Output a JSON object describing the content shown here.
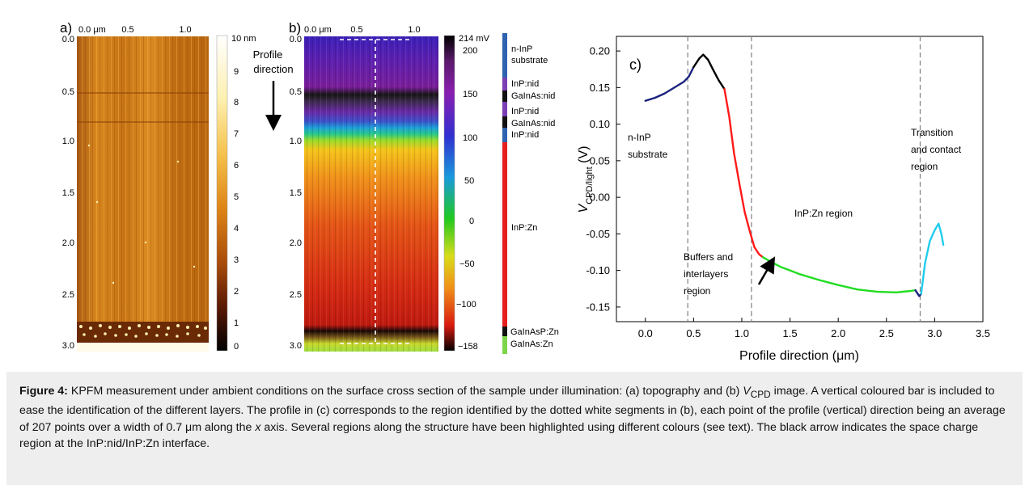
{
  "panel_a": {
    "label": "a)",
    "x_ticks": [
      "0.0 μm",
      "0.5",
      "1.0"
    ],
    "y_ticks": [
      "0.0",
      "0.5",
      "1.0",
      "1.5",
      "2.0",
      "2.5",
      "3.0"
    ],
    "colorbar_ticks": [
      "10 nm",
      "9",
      "8",
      "7",
      "6",
      "5",
      "4",
      "3",
      "2",
      "1",
      "0"
    ],
    "profile_label_line1": "Profile",
    "profile_label_line2": "direction"
  },
  "panel_b": {
    "label": "b)",
    "x_ticks": [
      "0.0 μm",
      "0.5",
      "1.0"
    ],
    "y_ticks": [
      "0.0",
      "0.5",
      "1.0",
      "1.5",
      "2.0",
      "2.5",
      "3.0"
    ],
    "colorbar_ticks": [
      "214 mV",
      "200",
      "150",
      "100",
      "50",
      "0",
      "−50",
      "−100",
      "−158"
    ],
    "layers": [
      {
        "label": "n-InP",
        "color": "#2f62b0"
      },
      {
        "label": "substrate",
        "color": ""
      },
      {
        "label": "InP:nid",
        "color": "#7a3fb5"
      },
      {
        "label": "GaInAs:nid",
        "color": "#111111"
      },
      {
        "label": "InP:nid",
        "color": "#7a3fb5"
      },
      {
        "label": "GaInAs:nid",
        "color": "#111111"
      },
      {
        "label": "InP:nid",
        "color": "#2f62b0"
      },
      {
        "label": "InP:Zn",
        "color": "#e61e1e"
      },
      {
        "label": "GaInAsP:Zn",
        "color": "#111111"
      },
      {
        "label": "GaInAs:Zn",
        "color": "#7cd64a"
      }
    ]
  },
  "panel_c": {
    "label": "c)",
    "annotations": {
      "n_inp_1": "n-InP",
      "n_inp_2": "substrate",
      "buffers_1": "Buffers and",
      "buffers_2": "interlayers",
      "buffers_3": "region",
      "inpzn": "InP:Zn region",
      "transition_1": "Transition",
      "transition_2": "and contact",
      "transition_3": "region"
    }
  },
  "chart_data": {
    "type": "line",
    "xlabel": "Profile direction (μm)",
    "ylabel": "VCPD/light (V)",
    "xlim": [
      -0.3,
      3.5
    ],
    "ylim": [
      -0.17,
      0.22
    ],
    "x_ticks": [
      "0.0",
      "0.5",
      "1.0",
      "1.5",
      "2.0",
      "2.5",
      "3.0",
      "3.5"
    ],
    "y_ticks": [
      "0.20",
      "0.15",
      "0.10",
      "0.05",
      "0.00",
      "-0.05",
      "-0.10",
      "-0.15"
    ],
    "vlines": [
      0.44,
      1.1,
      2.85
    ],
    "series": [
      {
        "color": "#1a237e",
        "x": [
          0.0,
          0.1,
          0.2,
          0.3,
          0.4,
          0.45,
          0.5
        ],
        "y": [
          0.132,
          0.136,
          0.142,
          0.15,
          0.158,
          0.165,
          0.178
        ]
      },
      {
        "color": "#000000",
        "x": [
          0.5,
          0.56,
          0.6,
          0.65,
          0.7,
          0.76,
          0.82
        ],
        "y": [
          0.178,
          0.19,
          0.195,
          0.188,
          0.175,
          0.16,
          0.148
        ]
      },
      {
        "color": "#ff1a1a",
        "x": [
          0.82,
          0.87,
          0.92,
          0.98,
          1.03,
          1.08,
          1.13,
          1.18,
          1.22
        ],
        "y": [
          0.148,
          0.11,
          0.06,
          0.015,
          -0.02,
          -0.045,
          -0.068,
          -0.078,
          -0.082
        ]
      },
      {
        "color": "#22dd22",
        "x": [
          1.22,
          1.3,
          1.4,
          1.5,
          1.6,
          1.8,
          2.0,
          2.2,
          2.4,
          2.6,
          2.75,
          2.8
        ],
        "y": [
          -0.082,
          -0.088,
          -0.095,
          -0.1,
          -0.105,
          -0.113,
          -0.12,
          -0.126,
          -0.129,
          -0.13,
          -0.128,
          -0.127
        ]
      },
      {
        "color": "#1a237e",
        "x": [
          2.8,
          2.82,
          2.84,
          2.86
        ],
        "y": [
          -0.127,
          -0.131,
          -0.135,
          -0.132
        ]
      },
      {
        "color": "#22ccee",
        "x": [
          2.86,
          2.9,
          2.95,
          3.0,
          3.04,
          3.07,
          3.09
        ],
        "y": [
          -0.132,
          -0.09,
          -0.06,
          -0.045,
          -0.036,
          -0.05,
          -0.065
        ]
      }
    ]
  },
  "caption": {
    "fig_label": "Figure 4:",
    "text_1": " KPFM measurement under ambient conditions on the surface cross section of the sample under illumination: (a) topography and (b) ",
    "v": "V",
    "cpd": "CPD",
    "text_2": " image. A vertical coloured bar is included to ease the identification of the different layers. The profile in (c) corresponds to the region identified by the dotted white segments in (b), each point of the profile (vertical) direction being an average of 207 points over a width of 0.7 μm along the ",
    "x": "x",
    "text_3": " axis. Several regions along the structure have been highlighted using different colours (see text). The black arrow indicates the space charge region at the InP:nid/InP:Zn interface."
  }
}
